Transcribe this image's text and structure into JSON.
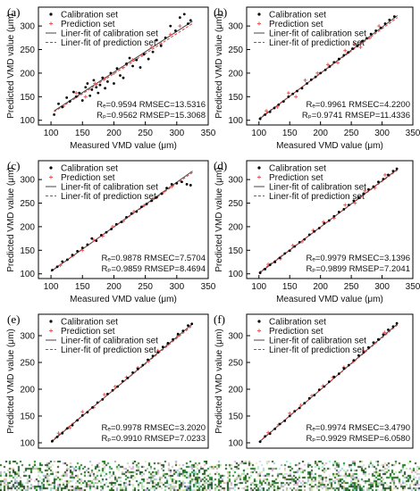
{
  "figure": {
    "xlabel": "Measured VMD value (μm)",
    "ylabel": "Predicted VMD value (μm)",
    "legend": [
      "Calibration set",
      "Prediction set",
      "Liner-fit of calibration set",
      "Liner-fit of prediction set"
    ],
    "colors": {
      "calibration": "#000000",
      "prediction": "#e35a5a",
      "fit_cal": "#444444",
      "fit_pred": "#d43a3a"
    }
  },
  "chart_data": [
    {
      "type": "scatter",
      "panel": "(a)",
      "xlim": [
        80,
        350
      ],
      "ylim": [
        90,
        340
      ],
      "xticks": [
        100,
        150,
        200,
        250,
        300,
        350
      ],
      "yticks": [
        100,
        150,
        200,
        250,
        300
      ],
      "show_xlabel": true,
      "stats": [
        "Rₑ=0.9594 RMSEC=13.5316",
        "Rₚ=0.9562 RMSEP=15.3068"
      ],
      "fit_cal": {
        "x": [
          105,
          325
        ],
        "y": [
          120,
          310
        ]
      },
      "fit_pred": {
        "x": [
          105,
          325
        ],
        "y": [
          118,
          305
        ]
      },
      "calibration": {
        "x": [
          105,
          112,
          118,
          125,
          130,
          136,
          140,
          145,
          150,
          155,
          158,
          162,
          165,
          168,
          172,
          175,
          178,
          182,
          186,
          190,
          195,
          200,
          205,
          210,
          215,
          220,
          225,
          230,
          236,
          242,
          248,
          255,
          262,
          268,
          275,
          282,
          290,
          298,
          305,
          312,
          318,
          322
        ],
        "y": [
          112,
          135,
          128,
          148,
          140,
          160,
          150,
          158,
          142,
          170,
          178,
          152,
          165,
          185,
          170,
          158,
          175,
          190,
          168,
          182,
          200,
          178,
          210,
          195,
          190,
          220,
          232,
          215,
          228,
          212,
          240,
          230,
          245,
          270,
          258,
          275,
          300,
          290,
          318,
          325,
          305,
          312
        ]
      },
      "prediction": {
        "x": [
          120,
          140,
          155,
          170,
          185,
          200,
          215,
          230,
          245,
          260,
          275,
          290,
          305
        ],
        "y": [
          130,
          158,
          150,
          178,
          188,
          200,
          212,
          228,
          238,
          255,
          262,
          282,
          300
        ]
      }
    },
    {
      "type": "scatter",
      "panel": "(b)",
      "xlim": [
        80,
        350
      ],
      "ylim": [
        90,
        340
      ],
      "xticks": [
        100,
        150,
        200,
        250,
        300,
        350
      ],
      "yticks": [
        100,
        150,
        200,
        250,
        300
      ],
      "show_xlabel": true,
      "stats": [
        "Rₑ=0.9961 RMSEC=4.2200",
        "Rₚ=0.9741 RMSEP=11.4336"
      ],
      "fit_cal": {
        "x": [
          100,
          325
        ],
        "y": [
          102,
          322
        ]
      },
      "fit_pred": {
        "x": [
          100,
          325
        ],
        "y": [
          104,
          318
        ]
      },
      "calibration": {
        "x": [
          102,
          110,
          118,
          125,
          132,
          140,
          148,
          155,
          162,
          170,
          178,
          185,
          192,
          200,
          208,
          215,
          222,
          230,
          238,
          245,
          252,
          260,
          268,
          275,
          282,
          290,
          298,
          305,
          312,
          320
        ],
        "y": [
          103,
          112,
          118,
          126,
          133,
          140,
          150,
          156,
          162,
          168,
          178,
          186,
          192,
          200,
          207,
          214,
          223,
          230,
          238,
          244,
          252,
          258,
          268,
          274,
          283,
          290,
          296,
          305,
          313,
          320
        ]
      },
      "prediction": {
        "x": [
          112,
          130,
          148,
          160,
          175,
          195,
          212,
          228,
          240,
          255,
          265,
          280,
          295
        ],
        "y": [
          120,
          128,
          158,
          150,
          185,
          200,
          218,
          222,
          248,
          262,
          255,
          275,
          300
        ]
      }
    },
    {
      "type": "scatter",
      "panel": "(c)",
      "xlim": [
        80,
        350
      ],
      "ylim": [
        90,
        340
      ],
      "xticks": [
        100,
        150,
        200,
        250,
        300,
        350
      ],
      "yticks": [
        100,
        150,
        200,
        250,
        300
      ],
      "show_xlabel": true,
      "stats": [
        "Rₑ=0.9878 RMSEC=7.5704",
        "Rₚ=0.9859 RMSEP=8.4694"
      ],
      "fit_cal": {
        "x": [
          100,
          325
        ],
        "y": [
          105,
          318
        ]
      },
      "fit_pred": {
        "x": [
          100,
          325
        ],
        "y": [
          106,
          315
        ]
      },
      "calibration": {
        "x": [
          102,
          110,
          118,
          126,
          134,
          142,
          150,
          158,
          165,
          172,
          180,
          188,
          196,
          204,
          212,
          220,
          228,
          236,
          244,
          252,
          260,
          268,
          276,
          284,
          292,
          300,
          308,
          316,
          322
        ],
        "y": [
          108,
          115,
          126,
          130,
          140,
          148,
          155,
          162,
          175,
          170,
          182,
          188,
          195,
          205,
          210,
          220,
          228,
          232,
          242,
          248,
          255,
          262,
          270,
          282,
          290,
          292,
          295,
          290,
          288
        ]
      },
      "prediction": {
        "x": [
          115,
          135,
          150,
          168,
          182,
          198,
          215,
          232,
          248,
          262,
          278,
          292
        ],
        "y": [
          118,
          138,
          150,
          172,
          180,
          200,
          212,
          232,
          245,
          258,
          272,
          285
        ]
      }
    },
    {
      "type": "scatter",
      "panel": "(d)",
      "xlim": [
        80,
        350
      ],
      "ylim": [
        90,
        340
      ],
      "xticks": [
        100,
        150,
        200,
        250,
        300,
        350
      ],
      "yticks": [
        100,
        150,
        200,
        250,
        300
      ],
      "show_xlabel": true,
      "stats": [
        "Rₑ=0.9979 RMSEC=3.1396",
        "Rₚ=0.9899 RMSEP=7.2041"
      ],
      "fit_cal": {
        "x": [
          100,
          325
        ],
        "y": [
          101,
          322
        ]
      },
      "fit_pred": {
        "x": [
          100,
          325
        ],
        "y": [
          103,
          320
        ]
      },
      "calibration": {
        "x": [
          102,
          110,
          118,
          126,
          134,
          142,
          150,
          158,
          166,
          174,
          182,
          190,
          198,
          206,
          214,
          222,
          230,
          238,
          246,
          254,
          262,
          270,
          278,
          286,
          294,
          302,
          310,
          318,
          324
        ],
        "y": [
          102,
          110,
          119,
          125,
          134,
          143,
          149,
          158,
          167,
          173,
          183,
          190,
          197,
          207,
          213,
          222,
          231,
          237,
          246,
          255,
          261,
          270,
          279,
          285,
          295,
          301,
          310,
          318,
          323
        ]
      },
      "prediction": {
        "x": [
          115,
          135,
          155,
          170,
          188,
          205,
          222,
          240,
          256,
          272,
          288,
          305
        ],
        "y": [
          120,
          132,
          160,
          168,
          192,
          210,
          218,
          246,
          250,
          276,
          282,
          310
        ]
      }
    },
    {
      "type": "scatter",
      "panel": "(e)",
      "xlim": [
        80,
        350
      ],
      "ylim": [
        90,
        340
      ],
      "xticks": [],
      "yticks": [
        100,
        150,
        200,
        250,
        300
      ],
      "show_xlabel": false,
      "stats": [
        "Rₑ=0.9978 RMSEC=3.2020",
        "Rₚ=0.9910 RMSEP=7.0233"
      ],
      "fit_cal": {
        "x": [
          100,
          325
        ],
        "y": [
          101,
          322
        ]
      },
      "fit_pred": {
        "x": [
          100,
          325
        ],
        "y": [
          103,
          319
        ]
      },
      "calibration": {
        "x": [
          102,
          110,
          118,
          126,
          134,
          142,
          150,
          158,
          166,
          174,
          182,
          190,
          198,
          206,
          214,
          222,
          230,
          238,
          246,
          254,
          262,
          270,
          278,
          286,
          294,
          302,
          310,
          318,
          324
        ],
        "y": [
          103,
          111,
          118,
          127,
          133,
          142,
          151,
          157,
          166,
          175,
          181,
          191,
          198,
          205,
          215,
          221,
          231,
          238,
          245,
          255,
          262,
          269,
          279,
          286,
          293,
          303,
          309,
          319,
          322
        ]
      },
      "prediction": {
        "x": [
          112,
          130,
          150,
          168,
          185,
          202,
          220,
          238,
          255,
          270,
          286,
          302
        ],
        "y": [
          118,
          128,
          158,
          166,
          190,
          205,
          222,
          240,
          252,
          272,
          284,
          300
        ]
      }
    },
    {
      "type": "scatter",
      "panel": "(f)",
      "xlim": [
        80,
        350
      ],
      "ylim": [
        90,
        340
      ],
      "xticks": [],
      "yticks": [
        100,
        150,
        200,
        250,
        300
      ],
      "show_xlabel": false,
      "stats": [
        "Rₑ=0.9974 RMSEC=3.4790",
        "Rₚ=0.9929 RMSEP=6.0580"
      ],
      "fit_cal": {
        "x": [
          100,
          325
        ],
        "y": [
          101,
          322
        ]
      },
      "fit_pred": {
        "x": [
          100,
          325
        ],
        "y": [
          102,
          320
        ]
      },
      "calibration": {
        "x": [
          102,
          110,
          118,
          126,
          134,
          142,
          150,
          158,
          166,
          174,
          182,
          190,
          198,
          206,
          214,
          222,
          230,
          238,
          246,
          254,
          262,
          270,
          278,
          286,
          294,
          302,
          310,
          318,
          324
        ],
        "y": [
          102,
          112,
          117,
          126,
          135,
          141,
          150,
          159,
          165,
          174,
          183,
          189,
          199,
          205,
          214,
          223,
          229,
          239,
          245,
          254,
          263,
          269,
          278,
          287,
          293,
          302,
          311,
          317,
          323
        ]
      },
      "prediction": {
        "x": [
          115,
          132,
          150,
          168,
          186,
          204,
          220,
          238,
          254,
          270,
          288,
          304
        ],
        "y": [
          119,
          134,
          155,
          170,
          188,
          206,
          222,
          241,
          252,
          272,
          286,
          306
        ]
      }
    }
  ]
}
